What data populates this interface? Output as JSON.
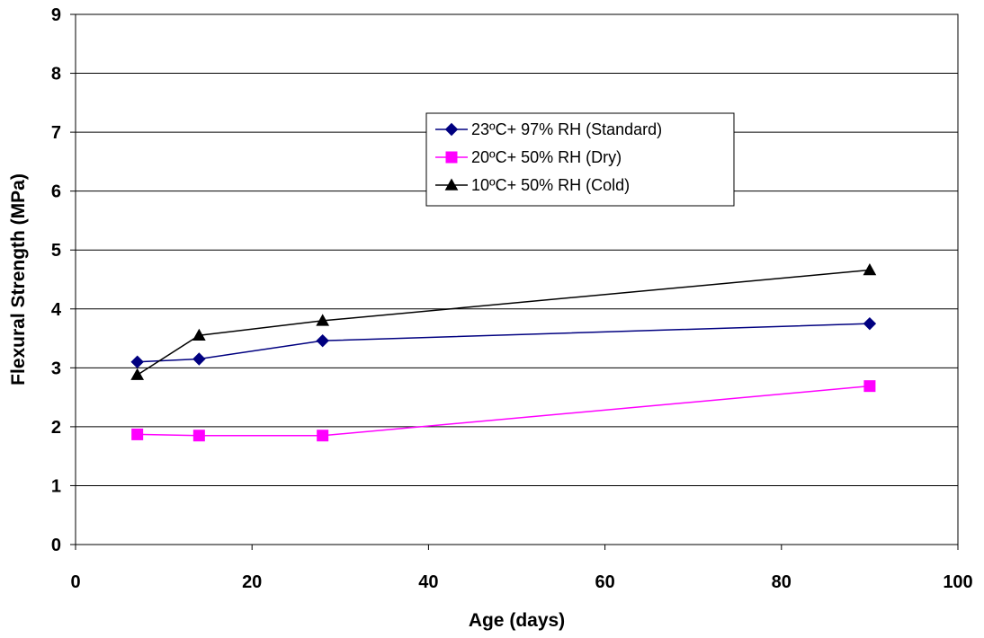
{
  "chart_data": {
    "type": "line",
    "title": "",
    "xlabel": "Age (days)",
    "ylabel": "Flexural Strength (MPa)",
    "xlim": [
      0,
      100
    ],
    "ylim": [
      0,
      9
    ],
    "xticks": [
      0,
      20,
      40,
      60,
      80,
      100
    ],
    "yticks": [
      0,
      1,
      2,
      3,
      4,
      5,
      6,
      7,
      8,
      9
    ],
    "grid": {
      "horizontal": true,
      "vertical": false
    },
    "legend_position": "top-center",
    "x": [
      7,
      14,
      28,
      90
    ],
    "series": [
      {
        "name": "23ºC+ 97% RH (Standard)",
        "values": [
          3.1,
          3.15,
          3.46,
          3.75
        ],
        "color": "#000080",
        "marker": "diamond"
      },
      {
        "name": "20ºC+ 50% RH (Dry)",
        "values": [
          1.87,
          1.85,
          1.85,
          2.69
        ],
        "color": "#ff00ff",
        "marker": "square"
      },
      {
        "name": "10ºC+ 50% RH (Cold)",
        "values": [
          2.88,
          3.55,
          3.8,
          4.66
        ],
        "color": "#000000",
        "marker": "triangle"
      }
    ]
  }
}
